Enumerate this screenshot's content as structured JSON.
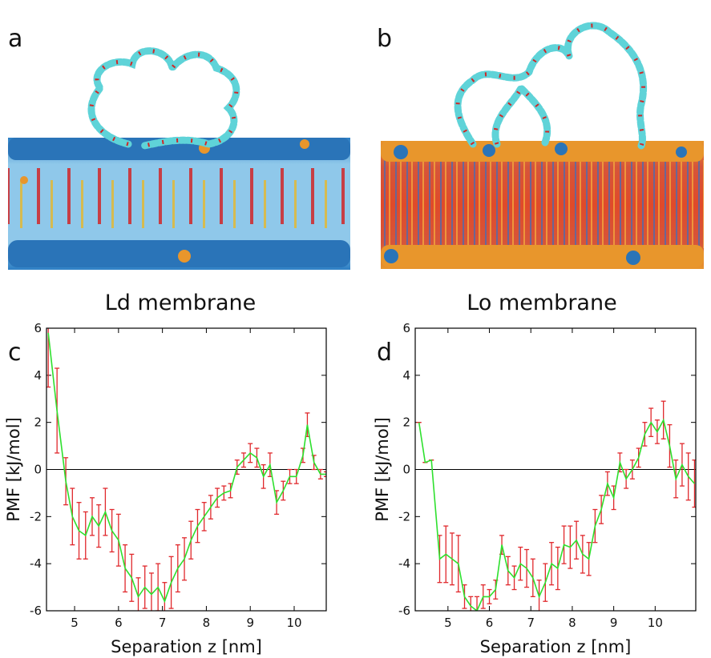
{
  "panels": [
    {
      "label": "a",
      "caption": "Ld membrane"
    },
    {
      "label": "b",
      "caption": "Lo membrane"
    }
  ],
  "chart_data": [
    {
      "type": "line",
      "panel_label": "c",
      "x_label": "Separation z [nm]",
      "y_label": "PMF [kJ/mol]",
      "xlim": [
        4.36,
        10.73
      ],
      "ylim": [
        -6,
        6
      ],
      "xticks": [
        5,
        6,
        7,
        8,
        9,
        10
      ],
      "yticks": [
        -6,
        -4,
        -2,
        0,
        2,
        4,
        6
      ],
      "zero_line": true,
      "x": [
        4.4,
        4.6,
        4.8,
        4.95,
        5.1,
        5.25,
        5.4,
        5.55,
        5.7,
        5.85,
        6.0,
        6.15,
        6.3,
        6.45,
        6.6,
        6.75,
        6.9,
        7.05,
        7.2,
        7.35,
        7.5,
        7.65,
        7.8,
        7.95,
        8.1,
        8.25,
        8.4,
        8.55,
        8.7,
        8.85,
        9.0,
        9.15,
        9.3,
        9.45,
        9.6,
        9.75,
        9.9,
        10.05,
        10.2,
        10.3,
        10.45,
        10.6,
        10.73
      ],
      "series": [
        {
          "color": "#2ee02e",
          "error_color": "#e0282c",
          "values": [
            5.8,
            2.5,
            -0.5,
            -2.0,
            -2.6,
            -2.8,
            -2.0,
            -2.4,
            -1.8,
            -2.6,
            -3.0,
            -4.2,
            -4.6,
            -5.4,
            -5.0,
            -5.3,
            -5.0,
            -5.6,
            -4.8,
            -4.2,
            -3.8,
            -3.0,
            -2.4,
            -2.0,
            -1.6,
            -1.2,
            -1.0,
            -0.9,
            0.1,
            0.4,
            0.7,
            0.5,
            -0.3,
            0.2,
            -1.4,
            -0.9,
            -0.3,
            -0.3,
            0.6,
            1.9,
            0.3,
            -0.2,
            -0.2
          ],
          "errors": [
            2.3,
            1.8,
            1.0,
            1.2,
            1.2,
            1.0,
            0.8,
            0.9,
            1.0,
            0.9,
            1.1,
            1.0,
            1.0,
            0.8,
            0.9,
            0.9,
            1.0,
            0.8,
            1.1,
            1.0,
            0.9,
            0.8,
            0.7,
            0.6,
            0.5,
            0.4,
            0.3,
            0.3,
            0.3,
            0.3,
            0.4,
            0.4,
            0.5,
            0.5,
            0.5,
            0.4,
            0.3,
            0.3,
            0.3,
            0.5,
            0.3,
            0.2,
            0.1
          ]
        }
      ]
    },
    {
      "type": "line",
      "panel_label": "d",
      "x_label": "Separation z [nm]",
      "y_label": "PMF [kJ/mol]",
      "xlim": [
        4.21,
        10.98
      ],
      "ylim": [
        -6,
        6
      ],
      "xticks": [
        5,
        6,
        7,
        8,
        9,
        10
      ],
      "yticks": [
        -6,
        -4,
        -2,
        0,
        2,
        4,
        6
      ],
      "zero_line": true,
      "x": [
        4.3,
        4.45,
        4.6,
        4.8,
        4.95,
        5.1,
        5.25,
        5.4,
        5.55,
        5.7,
        5.85,
        6.0,
        6.15,
        6.3,
        6.45,
        6.6,
        6.75,
        6.9,
        7.05,
        7.2,
        7.35,
        7.5,
        7.65,
        7.8,
        7.95,
        8.1,
        8.25,
        8.4,
        8.55,
        8.7,
        8.85,
        9.0,
        9.15,
        9.3,
        9.45,
        9.6,
        9.75,
        9.9,
        10.05,
        10.2,
        10.35,
        10.5,
        10.65,
        10.8,
        10.95
      ],
      "series": [
        {
          "color": "#2ee02e",
          "error_color": "#e0282c",
          "values": [
            2.0,
            0.3,
            0.4,
            -3.8,
            -3.6,
            -3.8,
            -4.0,
            -5.4,
            -5.8,
            -6.0,
            -5.4,
            -5.4,
            -5.1,
            -3.2,
            -4.3,
            -4.6,
            -4.0,
            -4.2,
            -4.6,
            -5.4,
            -4.8,
            -4.0,
            -4.2,
            -3.2,
            -3.3,
            -3.0,
            -3.6,
            -3.8,
            -2.4,
            -1.7,
            -0.6,
            -1.2,
            0.3,
            -0.4,
            0.0,
            0.5,
            1.5,
            2.0,
            1.6,
            2.1,
            1.0,
            -0.4,
            0.2,
            -0.3,
            -0.6
          ],
          "errors": [
            0,
            0,
            0,
            1.0,
            1.2,
            1.1,
            1.2,
            0.5,
            0.4,
            0.6,
            0.5,
            0.3,
            0.4,
            0.4,
            0.6,
            0.5,
            0.7,
            0.8,
            0.8,
            0.7,
            0.8,
            0.9,
            0.9,
            0.8,
            0.9,
            0.8,
            0.8,
            0.7,
            0.7,
            0.6,
            0.5,
            0.5,
            0.4,
            0.4,
            0.4,
            0.4,
            0.5,
            0.6,
            0.5,
            0.8,
            0.9,
            0.8,
            0.9,
            1.0,
            1.0
          ]
        }
      ]
    }
  ]
}
